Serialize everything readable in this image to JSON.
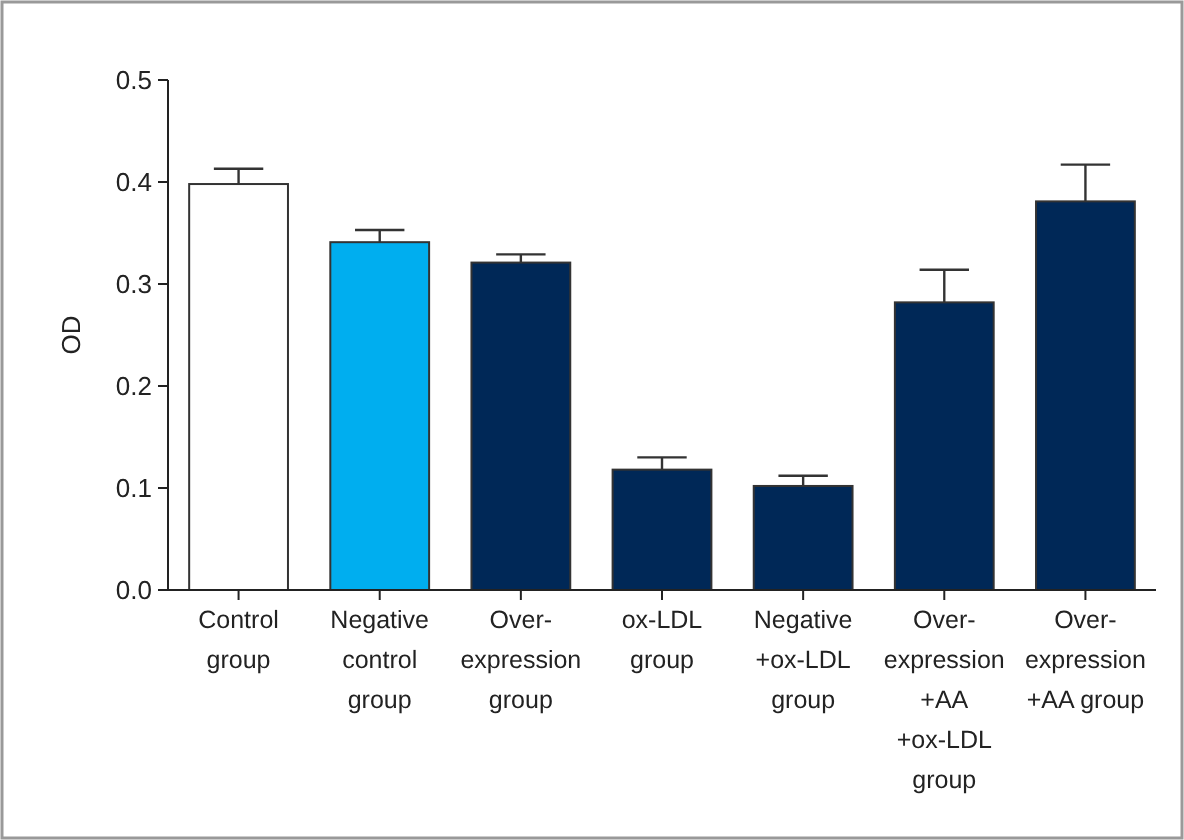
{
  "chart_data": {
    "type": "bar",
    "categories": [
      "Control\ngroup",
      "Negative\ncontrol\ngroup",
      "Over-\nexpression\ngroup",
      "ox-LDL\ngroup",
      "Negative\n+ox-LDL\ngroup",
      "Over-\nexpression\n+AA\n+ox-LDL\ngroup",
      "Over-\nexpression\n+AA group"
    ],
    "values": [
      0.398,
      0.341,
      0.321,
      0.118,
      0.102,
      0.282,
      0.381
    ],
    "errors": [
      0.015,
      0.012,
      0.008,
      0.012,
      0.01,
      0.032,
      0.036
    ],
    "colors": [
      "#ffffff",
      "#00aeef",
      "#002857",
      "#002857",
      "#002857",
      "#002857",
      "#002857"
    ],
    "ylabel": "OD",
    "ylim": [
      0,
      0.5
    ],
    "yticks": [
      {
        "value": 0,
        "label": "0.0"
      },
      0.1,
      0.2,
      0.3,
      0.4,
      0.5
    ],
    "grid": false
  }
}
